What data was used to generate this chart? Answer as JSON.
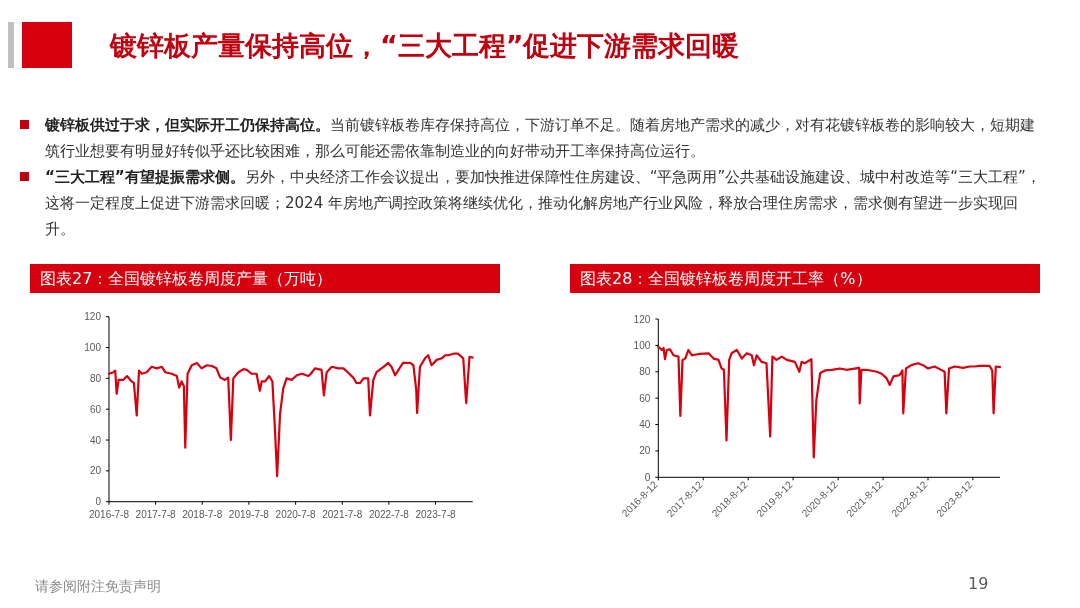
{
  "chart_data": [
    {
      "type": "other",
      "title": "镀锌板产量保持高位，“三大工程”促进下游需求回暖",
      "annotations": [
        "**镀锌板供过于求，但实际开工仍保持高位。**当前镀锌板卷库存保持高位，下游订单不足。随着房地产需求的减少，对有花镀锌板卷的影响较大，短期建筑行业想要有明显好转似乎还比较困难，那么可能还需依靠制造业的向好带动开工率保持高位运行。",
        "**“三大工程”有望提振需求侧。**另外，中央经济工作会议提出，要加快推进保障性住房建设、“平急两用”公共基础设施建设、城中村改造等“三大工程”，这将一定程度上促进下游需求回暖；2024 年房地产调控政策将继续优化，推动化解房地产行业风险，释放合理住房需求，需求侧有望进一步实现回升。",
        "请参阅附注免责声明",
        "19"
      ]
    },
    {
      "type": "line",
      "title": "图表27：全国镀锌板卷周度产量（万吨）",
      "xlim": [
        "2016-07-08",
        "2024-04-24"
      ],
      "ylim": [
        0,
        120
      ],
      "yticks": [
        0,
        20,
        40,
        60,
        80,
        100,
        120
      ],
      "xticks": [
        {
          "value": "2016-07-08",
          "label": "2016-7-8"
        },
        {
          "value": "2017-07-08",
          "label": "2017-7-8"
        },
        {
          "value": "2018-07-08",
          "label": "2018-7-8"
        },
        {
          "value": "2019-07-08",
          "label": "2019-7-8"
        },
        {
          "value": "2020-07-08",
          "label": "2020-7-8"
        },
        {
          "value": "2021-07-08",
          "label": "2021-7-8"
        },
        {
          "value": "2022-07-08",
          "label": "2022-7-8"
        },
        {
          "value": "2023-07-08",
          "label": "2023-7-8"
        }
      ],
      "x": [
        "2016-07-08",
        "2016-08-12",
        "2016-08-26",
        "2016-09-06",
        "2016-09-21",
        "2016-10-27",
        "2016-11-26",
        "2017-01-01",
        "2017-01-19",
        "2017-02-10",
        "2017-02-28",
        "2017-03-22",
        "2017-04-28",
        "2017-06-07",
        "2017-07-17",
        "2017-08-26",
        "2017-09-21",
        "2017-11-11",
        "2017-12-21",
        "2018-01-08",
        "2018-01-27",
        "2018-02-14",
        "2018-02-25",
        "2018-03-15",
        "2018-04-17",
        "2018-05-27",
        "2018-07-03",
        "2018-08-12",
        "2018-09-21",
        "2018-10-27",
        "2018-11-26",
        "2019-01-01",
        "2019-01-27",
        "2019-02-17",
        "2019-03-08",
        "2019-04-17",
        "2019-05-27",
        "2019-06-22",
        "2019-07-28",
        "2019-09-06",
        "2019-10-02",
        "2019-10-16",
        "2019-11-11",
        "2019-12-14",
        "2020-01-08",
        "2020-01-27",
        "2020-02-14",
        "2020-03-08",
        "2020-04-02",
        "2020-04-28",
        "2020-06-07",
        "2020-07-17",
        "2020-08-26",
        "2020-10-16",
        "2020-11-04",
        "2020-12-06",
        "2021-01-27",
        "2021-02-14",
        "2021-03-08",
        "2021-04-17",
        "2021-06-07",
        "2021-07-17",
        "2021-08-26",
        "2021-10-02",
        "2021-10-27",
        "2021-11-26",
        "2021-12-21",
        "2022-01-27",
        "2022-02-10",
        "2022-03-08",
        "2022-04-02",
        "2022-05-27",
        "2022-07-03",
        "2022-07-28",
        "2022-08-26",
        "2022-09-21",
        "2022-10-27",
        "2022-12-21",
        "2023-01-16",
        "2023-02-07",
        "2023-02-14",
        "2023-03-08",
        "2023-04-17",
        "2023-05-12",
        "2023-06-07",
        "2023-07-17",
        "2023-08-26",
        "2023-09-21",
        "2023-10-16",
        "2023-11-26",
        "2024-01-01",
        "2024-02-10",
        "2024-03-04",
        "2024-03-30",
        "2024-04-24"
      ],
      "series": [
        {
          "color": "#d7000f",
          "values": [
            83,
            84,
            85,
            70,
            79,
            79,
            81.5,
            78,
            77,
            56,
            85,
            83,
            84,
            87.5,
            86.5,
            87.5,
            84,
            83,
            81.5,
            74,
            78,
            75,
            35,
            83,
            88.5,
            90,
            86.5,
            88.5,
            88,
            86.5,
            80.5,
            79,
            80.5,
            40,
            80,
            84,
            86,
            85.5,
            83,
            83,
            72,
            78,
            78,
            81.5,
            78,
            48.5,
            16.5,
            57,
            73.5,
            80,
            79,
            82,
            83,
            81.5,
            83,
            86.5,
            85.5,
            69,
            84,
            87.5,
            86.5,
            86.5,
            83.5,
            80.5,
            77,
            77,
            80,
            80,
            56,
            79,
            84,
            87.5,
            90,
            87.5,
            82,
            85.5,
            90,
            90,
            88.5,
            72.5,
            57.5,
            87.5,
            93,
            95,
            88.5,
            92,
            93,
            95,
            95,
            96,
            96,
            93,
            64,
            94,
            93.5
          ]
        }
      ]
    },
    {
      "type": "line",
      "title": "图表28：全国镀锌板卷周度开工率（%）",
      "xlim": [
        "2016-08-12",
        "2024-03-19"
      ],
      "ylim": [
        0,
        120
      ],
      "yticks": [
        0,
        20,
        40,
        60,
        80,
        100,
        120
      ],
      "xticks": [
        {
          "value": "2016-08-12",
          "label": "2016-8-12"
        },
        {
          "value": "2017-08-12",
          "label": "2017-8-12"
        },
        {
          "value": "2018-08-12",
          "label": "2018-8-12"
        },
        {
          "value": "2019-08-12",
          "label": "2019-8-12"
        },
        {
          "value": "2020-08-12",
          "label": "2020-8-12"
        },
        {
          "value": "2021-08-12",
          "label": "2021-8-12"
        },
        {
          "value": "2022-08-12",
          "label": "2022-8-12"
        },
        {
          "value": "2023-08-12",
          "label": "2023-8-12"
        }
      ],
      "x": [
        "2016-08-12",
        "2016-09-10",
        "2016-09-24",
        "2016-10-05",
        "2016-10-20",
        "2016-11-15",
        "2016-12-14",
        "2017-01-23",
        "2017-02-07",
        "2017-02-25",
        "2017-03-19",
        "2017-04-13",
        "2017-05-12",
        "2017-07-17",
        "2017-09-24",
        "2017-11-04",
        "2017-12-14",
        "2018-01-08",
        "2018-01-27",
        "2018-02-17",
        "2018-03-11",
        "2018-03-30",
        "2018-05-12",
        "2018-06-22",
        "2018-08-01",
        "2018-09-10",
        "2018-09-28",
        "2018-10-20",
        "2018-11-29",
        "2019-01-08",
        "2019-02-07",
        "2019-02-25",
        "2019-03-30",
        "2019-05-12",
        "2019-06-22",
        "2019-08-26",
        "2019-10-02",
        "2019-10-20",
        "2019-11-15",
        "2020-01-08",
        "2020-01-27",
        "2020-02-17",
        "2020-03-19",
        "2020-04-28",
        "2020-06-22",
        "2020-08-26",
        "2020-10-20",
        "2021-01-30",
        "2021-02-03",
        "2021-02-17",
        "2021-03-30",
        "2021-06-22",
        "2021-08-01",
        "2021-09-10",
        "2021-10-05",
        "2021-11-04",
        "2021-12-25",
        "2022-01-16",
        "2022-01-23",
        "2022-02-14",
        "2022-03-30",
        "2022-05-23",
        "2022-07-03",
        "2022-08-12",
        "2022-10-05",
        "2022-11-15",
        "2022-12-25",
        "2023-01-08",
        "2023-01-30",
        "2023-03-19",
        "2023-05-23",
        "2023-07-17",
        "2023-08-26",
        "2023-10-05",
        "2023-12-25",
        "2024-01-16",
        "2024-01-27",
        "2024-02-14",
        "2024-03-19"
      ],
      "series": [
        {
          "color": "#d7000f",
          "values": [
            99,
            96.5,
            98,
            89.5,
            96.5,
            97,
            92.5,
            91.5,
            46.5,
            89,
            90,
            96.5,
            92.5,
            93.5,
            94,
            90,
            89,
            82.5,
            81.5,
            28,
            89,
            94,
            96.5,
            90,
            94,
            92.5,
            85,
            92.5,
            87.5,
            86.5,
            31,
            91.5,
            89,
            91.5,
            89,
            87.5,
            80,
            87.5,
            86.5,
            89.5,
            15,
            58.5,
            79,
            81,
            81.5,
            82.5,
            81.5,
            83,
            56,
            81.5,
            81.5,
            80,
            78.5,
            75,
            70,
            76.5,
            77.5,
            81,
            48.5,
            82.5,
            85,
            86.5,
            85,
            82.5,
            84,
            82,
            80,
            48.5,
            82.5,
            84,
            83,
            84,
            84,
            84.5,
            84.5,
            81,
            48.5,
            84,
            83.5
          ]
        }
      ]
    }
  ]
}
